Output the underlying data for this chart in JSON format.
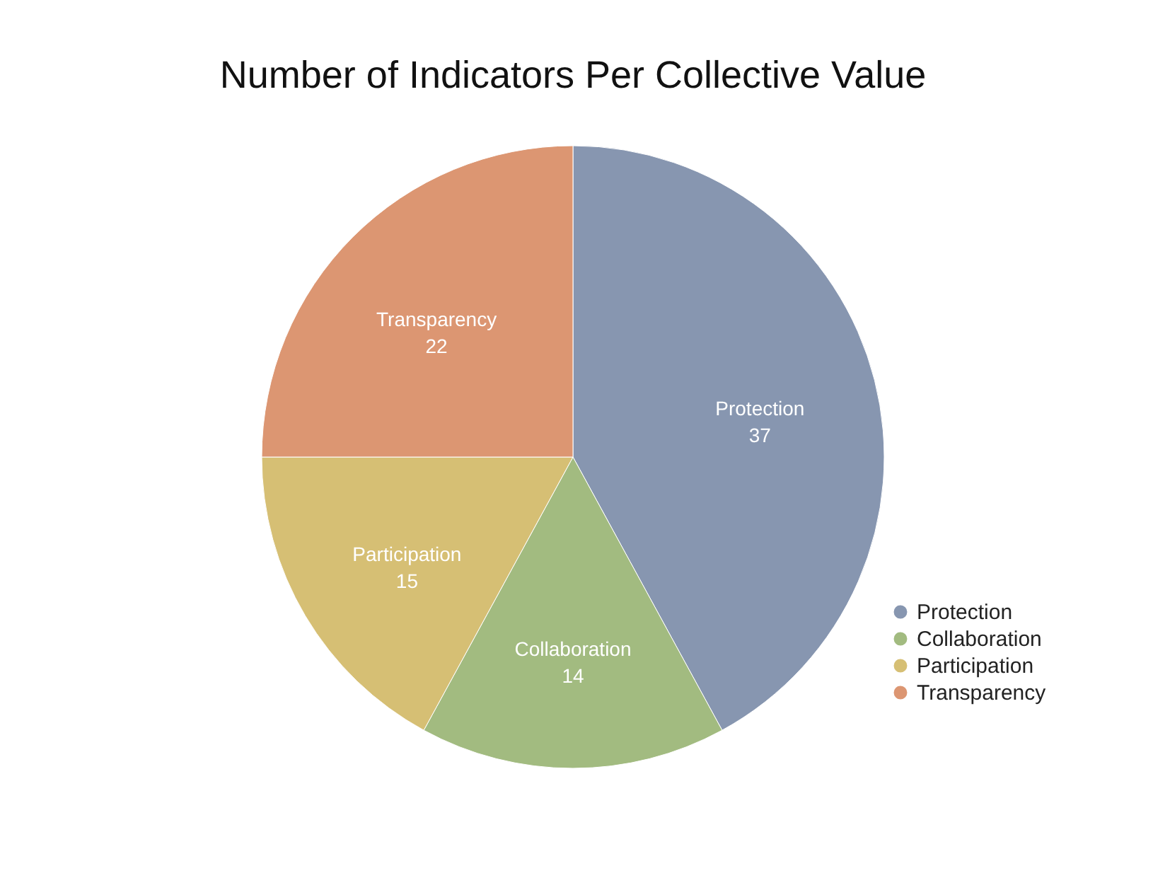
{
  "chart_data": {
    "type": "pie",
    "title": "Number of Indicators Per Collective Value",
    "categories": [
      "Protection",
      "Collaboration",
      "Participation",
      "Transparency"
    ],
    "values": [
      37,
      14,
      15,
      22
    ],
    "colors": [
      "#8796b0",
      "#a2bb80",
      "#d6bf74",
      "#dc9672"
    ],
    "data_labels": true,
    "legend": "bottom right"
  }
}
